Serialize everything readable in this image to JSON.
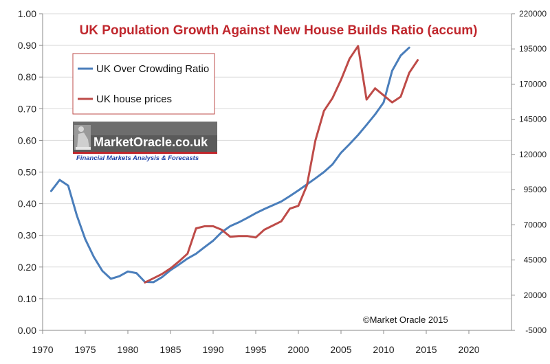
{
  "chart_data": {
    "type": "line",
    "title": "UK  Population Growth Against New House Builds Ratio (accum)",
    "xlim": [
      1970,
      2025
    ],
    "xticks": [
      1970,
      1975,
      1980,
      1985,
      1990,
      1995,
      2000,
      2005,
      2010,
      2015,
      2020
    ],
    "ylim_left": [
      0,
      1.0
    ],
    "yticks_left": [
      "0.00",
      "0.10",
      "0.20",
      "0.30",
      "0.40",
      "0.50",
      "0.60",
      "0.70",
      "0.80",
      "0.90",
      "1.00"
    ],
    "ylim_right": [
      -5000,
      220000
    ],
    "yticks_right": [
      "-5000",
      "20000",
      "45000",
      "70000",
      "95000",
      "120000",
      "145000",
      "170000",
      "195000",
      "220000"
    ],
    "grid": "horizontal",
    "legend_position": "top-left",
    "series": [
      {
        "name": "UK Over Crowding Ratio",
        "axis": "left",
        "color": "#4a7ebb",
        "x": [
          1971,
          1972,
          1973,
          1974,
          1975,
          1976,
          1977,
          1978,
          1979,
          1980,
          1981,
          1982,
          1983,
          1984,
          1985,
          1986,
          1987,
          1988,
          1989,
          1990,
          1991,
          1992,
          1993,
          1994,
          1995,
          1996,
          1997,
          1998,
          1999,
          2000,
          2001,
          2002,
          2003,
          2004,
          2005,
          2006,
          2007,
          2008,
          2009,
          2010,
          2011,
          2012,
          2013
        ],
        "values": [
          0.44,
          0.475,
          0.457,
          0.364,
          0.288,
          0.232,
          0.188,
          0.163,
          0.171,
          0.186,
          0.181,
          0.153,
          0.152,
          0.168,
          0.19,
          0.208,
          0.227,
          0.242,
          0.263,
          0.283,
          0.31,
          0.329,
          0.341,
          0.355,
          0.37,
          0.383,
          0.395,
          0.407,
          0.424,
          0.442,
          0.461,
          0.48,
          0.5,
          0.524,
          0.561,
          0.588,
          0.617,
          0.649,
          0.682,
          0.72,
          0.82,
          0.868,
          0.893
        ]
      },
      {
        "name": "UK house prices",
        "axis": "right",
        "color": "#be4b48",
        "x": [
          1982,
          1983,
          1984,
          1985,
          1986,
          1987,
          1988,
          1989,
          1990,
          1991,
          1992,
          1993,
          1994,
          1995,
          1996,
          1997,
          1998,
          1999,
          2000,
          2001,
          2002,
          2003,
          2004,
          2005,
          2006,
          2007,
          2008,
          2009,
          2010,
          2011,
          2012,
          2013,
          2014
        ],
        "values": [
          29000,
          32000,
          35000,
          39000,
          44000,
          49500,
          67500,
          69000,
          69000,
          66500,
          61500,
          62000,
          62000,
          61000,
          66500,
          69500,
          72500,
          81500,
          83500,
          98000,
          130000,
          151000,
          160000,
          173000,
          188000,
          197000,
          159000,
          167000,
          162000,
          157000,
          161000,
          178000,
          187000
        ]
      }
    ],
    "annotations": [
      "©Market Oracle 2015"
    ]
  },
  "logo": {
    "name": "MarketOracle.co.uk",
    "tagline": "Financial Markets Analysis & Forecasts"
  }
}
